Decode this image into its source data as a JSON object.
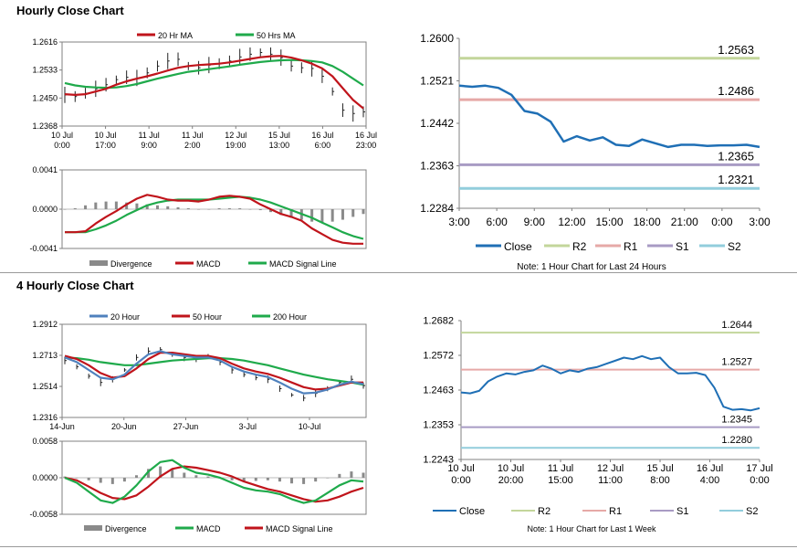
{
  "titles": {
    "hourly": "Hourly Close Chart",
    "four_hourly": "4 Hourly Close Chart"
  },
  "colors": {
    "red": "#c0141b",
    "green": "#1faa4b",
    "blue": "#1f6fb5",
    "steel": "#4f81bd",
    "r2": "#c3d69b",
    "r1": "#e6a9a7",
    "s1": "#a89bc4",
    "s2": "#92cddc",
    "bar": "#8a8a8a"
  },
  "chart_data": [
    {
      "id": "hourly_price",
      "type": "line",
      "title": "",
      "legend": [
        "20 Hr MA",
        "50 Hrs MA"
      ],
      "y_ticks": [
        "1.2616",
        "1.2533",
        "1.2450",
        "1.2368"
      ],
      "ylim": [
        1.2368,
        1.2616
      ],
      "x_ticks": [
        [
          "10 Jul",
          "0:00"
        ],
        [
          "10 Jul",
          "17:00"
        ],
        [
          "11 Jul",
          "9:00"
        ],
        [
          "11 Jul",
          "2:00"
        ],
        [
          "12 Jul",
          "19:00"
        ],
        [
          "15 Jul",
          "13:00"
        ],
        [
          "16 Jul",
          "6:00"
        ],
        [
          "16 Jul",
          "23:00"
        ]
      ],
      "series": [
        {
          "name": "Close",
          "color_key": "bar",
          "values": [
            1.246,
            1.2455,
            1.2465,
            1.2478,
            1.249,
            1.2505,
            1.2512,
            1.251,
            1.2525,
            1.2545,
            1.256,
            1.2565,
            1.2545,
            1.254,
            1.2548,
            1.2552,
            1.256,
            1.2572,
            1.258,
            1.2585,
            1.258,
            1.257,
            1.2545,
            1.254,
            1.2538,
            1.2515,
            1.247,
            1.2415,
            1.2405,
            1.241
          ]
        },
        {
          "name": "20 Hr MA",
          "color_key": "red",
          "values": [
            1.2462,
            1.246,
            1.2462,
            1.247,
            1.2478,
            1.249,
            1.25,
            1.2508,
            1.2515,
            1.2523,
            1.2532,
            1.254,
            1.2545,
            1.2548,
            1.255,
            1.2552,
            1.2556,
            1.2561,
            1.2566,
            1.2571,
            1.2574,
            1.2575,
            1.257,
            1.2562,
            1.2552,
            1.2538,
            1.2515,
            1.248,
            1.2445,
            1.242
          ]
        },
        {
          "name": "50 Hrs MA",
          "color_key": "green",
          "values": [
            1.2495,
            1.2488,
            1.2484,
            1.2482,
            1.2481,
            1.2482,
            1.2486,
            1.2492,
            1.25,
            1.2508,
            1.2515,
            1.2522,
            1.2528,
            1.2532,
            1.2536,
            1.254,
            1.2544,
            1.2549,
            1.2553,
            1.2557,
            1.256,
            1.2562,
            1.2563,
            1.2562,
            1.256,
            1.2556,
            1.2545,
            1.2528,
            1.2508,
            1.2488
          ]
        }
      ]
    },
    {
      "id": "hourly_macd",
      "type": "line",
      "legend": [
        "Divergence",
        "MACD",
        "MACD Signal Line"
      ],
      "y_ticks": [
        "0.0041",
        "0.0000",
        "-0.0041"
      ],
      "ylim": [
        -0.0041,
        0.0041
      ],
      "series": [
        {
          "name": "Divergence",
          "color_key": "bar",
          "values": [
            0.0,
            0.0001,
            0.0004,
            0.0007,
            0.0008,
            0.0008,
            0.0007,
            0.0006,
            0.0005,
            0.0004,
            0.0003,
            0.0002,
            0.0001,
            0.0,
            0.0,
            0.0001,
            0.0001,
            0.0001,
            0.0,
            -0.0001,
            -0.0003,
            -0.0006,
            -0.0009,
            -0.0011,
            -0.0013,
            -0.0014,
            -0.0013,
            -0.0011,
            -0.0008,
            -0.0005
          ]
        },
        {
          "name": "MACD",
          "color_key": "red",
          "values": [
            -0.0024,
            -0.0024,
            -0.0023,
            -0.0015,
            -0.0008,
            -0.0002,
            0.0005,
            0.0011,
            0.0015,
            0.0013,
            0.001,
            0.0009,
            0.0009,
            0.0008,
            0.001,
            0.0013,
            0.0014,
            0.0013,
            0.0011,
            0.0005,
            0.0,
            -0.0005,
            -0.0008,
            -0.0012,
            -0.002,
            -0.0026,
            -0.0032,
            -0.0035,
            -0.0036,
            -0.0036
          ]
        },
        {
          "name": "MACD Signal Line",
          "color_key": "green",
          "values": [
            -0.0024,
            -0.0024,
            -0.0024,
            -0.0021,
            -0.0017,
            -0.0012,
            -0.0006,
            -0.0001,
            0.0004,
            0.0007,
            0.0009,
            0.001,
            0.001,
            0.001,
            0.001,
            0.0011,
            0.0012,
            0.0013,
            0.0012,
            0.001,
            0.0007,
            0.0003,
            -0.0001,
            -0.0005,
            -0.0009,
            -0.0014,
            -0.0019,
            -0.0024,
            -0.0028,
            -0.0031
          ]
        }
      ]
    },
    {
      "id": "hourly_pivot",
      "type": "line",
      "y_ticks": [
        "1.2600",
        "1.2521",
        "1.2442",
        "1.2363",
        "1.2284"
      ],
      "ylim": [
        1.2284,
        1.26
      ],
      "x_ticks": [
        "3:00",
        "6:00",
        "9:00",
        "12:00",
        "15:00",
        "18:00",
        "21:00",
        "0:00",
        "3:00"
      ],
      "note": "Note: 1 Hour Chart for Last 24 Hours",
      "legend": [
        "Close",
        "R2",
        "R1",
        "S1",
        "S2"
      ],
      "levels": [
        {
          "name": "R2",
          "value": 1.2563,
          "label": "1.2563",
          "color_key": "r2"
        },
        {
          "name": "R1",
          "value": 1.2486,
          "label": "1.2486",
          "color_key": "r1"
        },
        {
          "name": "S1",
          "value": 1.2365,
          "label": "1.2365",
          "color_key": "s1"
        },
        {
          "name": "S2",
          "value": 1.2321,
          "label": "1.2321",
          "color_key": "s2"
        }
      ],
      "series": [
        {
          "name": "Close",
          "color_key": "blue",
          "values": [
            1.2512,
            1.251,
            1.2512,
            1.2508,
            1.2495,
            1.2465,
            1.246,
            1.2445,
            1.2408,
            1.2418,
            1.241,
            1.2416,
            1.2402,
            1.24,
            1.2412,
            1.2405,
            1.2398,
            1.2402,
            1.2402,
            1.24,
            1.2401,
            1.2401,
            1.2402,
            1.2398
          ]
        }
      ]
    },
    {
      "id": "four_hourly_price",
      "type": "line",
      "legend": [
        "20 Hour",
        "50 Hour",
        "200 Hour"
      ],
      "y_ticks": [
        "1.2912",
        "1.2713",
        "1.2514",
        "1.2316"
      ],
      "ylim": [
        1.2316,
        1.2912
      ],
      "x_ticks": [
        "14-Jun",
        "20-Jun",
        "27-Jun",
        "3-Jul",
        "10-Jul"
      ],
      "series": [
        {
          "name": "Close",
          "color_key": "bar",
          "values": [
            1.268,
            1.264,
            1.258,
            1.254,
            1.256,
            1.262,
            1.27,
            1.274,
            1.275,
            1.272,
            1.27,
            1.269,
            1.271,
            1.267,
            1.262,
            1.259,
            1.257,
            1.256,
            1.25,
            1.246,
            1.244,
            1.247,
            1.25,
            1.254,
            1.256,
            1.252
          ]
        },
        {
          "name": "20 Hour",
          "color_key": "steel",
          "values": [
            1.27,
            1.267,
            1.262,
            1.257,
            1.256,
            1.259,
            1.266,
            1.272,
            1.274,
            1.272,
            1.271,
            1.27,
            1.27,
            1.268,
            1.264,
            1.261,
            1.259,
            1.2575,
            1.254,
            1.25,
            1.247,
            1.2475,
            1.2495,
            1.2525,
            1.2545,
            1.253
          ]
        },
        {
          "name": "50 Hour",
          "color_key": "red",
          "values": [
            1.271,
            1.269,
            1.265,
            1.26,
            1.257,
            1.258,
            1.263,
            1.269,
            1.273,
            1.273,
            1.272,
            1.271,
            1.271,
            1.2695,
            1.266,
            1.263,
            1.261,
            1.2595,
            1.257,
            1.254,
            1.251,
            1.2495,
            1.25,
            1.252,
            1.254,
            1.254
          ]
        },
        {
          "name": "200 Hour",
          "color_key": "green",
          "values": [
            1.27,
            1.2695,
            1.2685,
            1.267,
            1.266,
            1.265,
            1.265,
            1.266,
            1.267,
            1.268,
            1.2685,
            1.269,
            1.2695,
            1.2695,
            1.269,
            1.268,
            1.2665,
            1.265,
            1.263,
            1.261,
            1.259,
            1.2575,
            1.256,
            1.255,
            1.254,
            1.2525
          ]
        }
      ]
    },
    {
      "id": "four_hourly_macd",
      "type": "line",
      "legend": [
        "Divergence",
        "MACD",
        "MACD Signal Line"
      ],
      "y_ticks": [
        "0.0058",
        "0.0000",
        "-0.0058"
      ],
      "ylim": [
        -0.0058,
        0.0058
      ],
      "series": [
        {
          "name": "Divergence",
          "color_key": "bar",
          "values": [
            0.0002,
            0.0,
            -0.0004,
            -0.0008,
            -0.001,
            -0.0006,
            0.0004,
            0.0014,
            0.0018,
            0.0014,
            0.0008,
            0.0004,
            0.0002,
            0.0,
            -0.0004,
            -0.0006,
            -0.0005,
            -0.0004,
            -0.0006,
            -0.0009,
            -0.001,
            -0.0006,
            0.0,
            0.0006,
            0.001,
            0.0008
          ]
        },
        {
          "name": "MACD",
          "color_key": "green",
          "values": [
            0.0,
            -0.0008,
            -0.0022,
            -0.0036,
            -0.004,
            -0.003,
            -0.0012,
            0.001,
            0.0025,
            0.0028,
            0.0016,
            0.0008,
            0.0005,
            0.0,
            -0.0008,
            -0.0016,
            -0.002,
            -0.0022,
            -0.0026,
            -0.0034,
            -0.004,
            -0.0036,
            -0.0024,
            -0.0012,
            -0.0004,
            -0.0006
          ]
        },
        {
          "name": "MACD Signal Line",
          "color_key": "red",
          "values": [
            0.0,
            -0.0004,
            -0.0014,
            -0.0024,
            -0.0032,
            -0.0034,
            -0.0028,
            -0.0014,
            0.0002,
            0.0014,
            0.0018,
            0.0016,
            0.0012,
            0.0008,
            0.0002,
            -0.0006,
            -0.0012,
            -0.0018,
            -0.0022,
            -0.0028,
            -0.0034,
            -0.0038,
            -0.0036,
            -0.003,
            -0.0022,
            -0.0016
          ]
        }
      ]
    },
    {
      "id": "four_hourly_pivot",
      "type": "line",
      "y_ticks": [
        "1.2682",
        "1.2572",
        "1.2463",
        "1.2353",
        "1.2243"
      ],
      "ylim": [
        1.2243,
        1.2682
      ],
      "x_ticks": [
        [
          "10 Jul",
          "0:00"
        ],
        [
          "10 Jul",
          "20:00"
        ],
        [
          "11 Jul",
          "15:00"
        ],
        [
          "12 Jul",
          "11:00"
        ],
        [
          "15 Jul",
          "8:00"
        ],
        [
          "16 Jul",
          "4:00"
        ],
        [
          "17 Jul",
          "0:00"
        ]
      ],
      "note": "Note: 1 Hour Chart for Last 1 Week",
      "legend": [
        "Close",
        "R2",
        "R1",
        "S1",
        "S2"
      ],
      "levels": [
        {
          "name": "R2",
          "value": 1.2644,
          "label": "1.2644",
          "color_key": "r2"
        },
        {
          "name": "R1",
          "value": 1.2527,
          "label": "1.2527",
          "color_key": "r1"
        },
        {
          "name": "S1",
          "value": 1.2345,
          "label": "1.2345",
          "color_key": "s1"
        },
        {
          "name": "S2",
          "value": 1.228,
          "label": "1.2280",
          "color_key": "s2"
        }
      ],
      "series": [
        {
          "name": "Close",
          "color_key": "blue",
          "values": [
            1.2455,
            1.2452,
            1.246,
            1.249,
            1.2505,
            1.2515,
            1.2512,
            1.252,
            1.2525,
            1.254,
            1.253,
            1.2515,
            1.2525,
            1.252,
            1.253,
            1.2535,
            1.2545,
            1.2555,
            1.2565,
            1.256,
            1.257,
            1.256,
            1.2565,
            1.2535,
            1.2515,
            1.2515,
            1.2517,
            1.251,
            1.247,
            1.241,
            1.24,
            1.2402,
            1.2398,
            1.2405
          ]
        }
      ]
    }
  ]
}
